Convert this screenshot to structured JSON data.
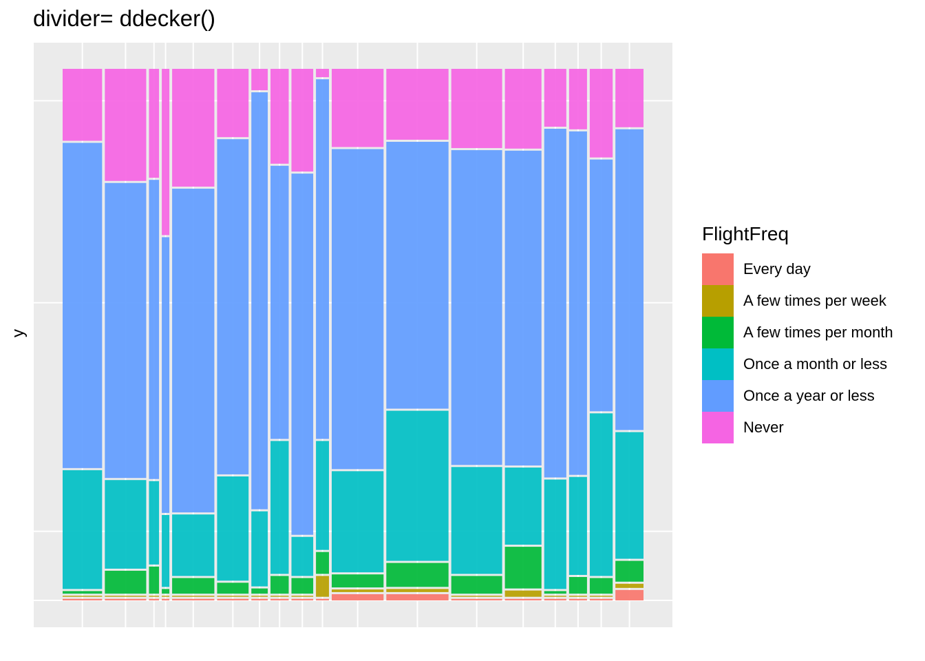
{
  "chart_data": {
    "type": "mosaic",
    "title": "divider= ddecker()",
    "xlabel": "",
    "ylabel": "y",
    "grid": true,
    "legend": {
      "title": "FlightFreq",
      "position": "right",
      "entries": [
        {
          "label": "Every day",
          "color": "#F8766D"
        },
        {
          "label": "A few times per week",
          "color": "#B79F00"
        },
        {
          "label": "A few times per month",
          "color": "#00BA38"
        },
        {
          "label": "Once a month or less",
          "color": "#00BFC4"
        },
        {
          "label": "Once a year or less",
          "color": "#619CFF"
        },
        {
          "label": "Never",
          "color": "#F564E3"
        }
      ]
    },
    "ylim": [
      0,
      1
    ],
    "columns": [
      {
        "w": 0.0698,
        "v": [
          0.003,
          0.002,
          0.005,
          0.228,
          0.624,
          0.138
        ]
      },
      {
        "w": 0.0732,
        "v": [
          0.003,
          0.002,
          0.044,
          0.17,
          0.566,
          0.215
        ]
      },
      {
        "w": 0.0178,
        "v": [
          0.003,
          0.002,
          0.052,
          0.16,
          0.574,
          0.209
        ]
      },
      {
        "w": 0.0134,
        "v": [
          0.003,
          0.002,
          0.009,
          0.138,
          0.529,
          0.319
        ]
      },
      {
        "w": 0.0747,
        "v": [
          0.003,
          0.002,
          0.03,
          0.118,
          0.621,
          0.226
        ]
      },
      {
        "w": 0.0557,
        "v": [
          0.003,
          0.002,
          0.021,
          0.2,
          0.643,
          0.131
        ]
      },
      {
        "w": 0.029,
        "v": [
          0.003,
          0.002,
          0.01,
          0.144,
          0.8,
          0.041
        ]
      },
      {
        "w": 0.0322,
        "v": [
          0.003,
          0.002,
          0.034,
          0.255,
          0.524,
          0.182
        ]
      },
      {
        "w": 0.0385,
        "v": [
          0.003,
          0.002,
          0.03,
          0.075,
          0.693,
          0.197
        ]
      },
      {
        "w": 0.023,
        "v": [
          0.003,
          0.04,
          0.042,
          0.209,
          0.69,
          0.016
        ]
      },
      {
        "w": 0.0917,
        "v": [
          0.012,
          0.005,
          0.025,
          0.194,
          0.614,
          0.15
        ]
      },
      {
        "w": 0.11,
        "v": [
          0.012,
          0.006,
          0.046,
          0.288,
          0.512,
          0.136
        ]
      },
      {
        "w": 0.09,
        "v": [
          0.003,
          0.002,
          0.034,
          0.205,
          0.604,
          0.152
        ]
      },
      {
        "w": 0.0647,
        "v": [
          0.003,
          0.012,
          0.08,
          0.148,
          0.604,
          0.153
        ]
      },
      {
        "w": 0.0391,
        "v": [
          0.003,
          0.002,
          0.005,
          0.21,
          0.669,
          0.111
        ]
      },
      {
        "w": 0.0317,
        "v": [
          0.003,
          0.002,
          0.032,
          0.188,
          0.659,
          0.116
        ]
      },
      {
        "w": 0.0405,
        "v": [
          0.003,
          0.002,
          0.03,
          0.312,
          0.483,
          0.17
        ]
      },
      {
        "w": 0.0497,
        "v": [
          0.02,
          0.008,
          0.04,
          0.243,
          0.577,
          0.112
        ]
      }
    ]
  }
}
